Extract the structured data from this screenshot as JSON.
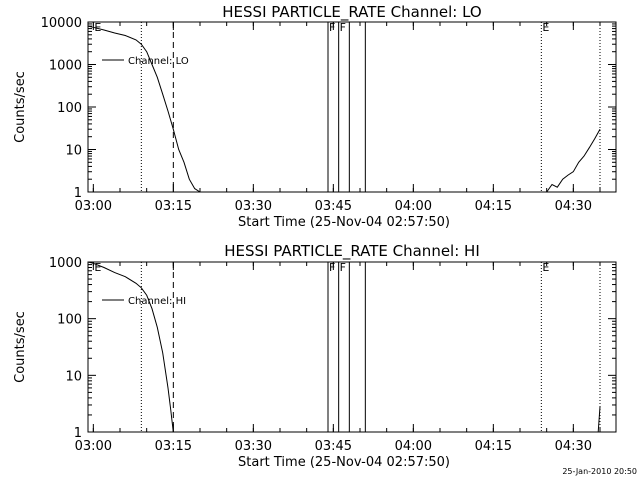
{
  "chart_data": [
    {
      "type": "line",
      "title": "HESSI PARTICLE_RATE Channel: LO",
      "xlabel": "Start Time (25-Nov-04 02:57:50)",
      "ylabel": "Counts/sec",
      "yscale": "log",
      "ylim": [
        1,
        10000
      ],
      "xlim": [
        "02:59:00",
        "04:38:00"
      ],
      "grid": false,
      "legend_placement": "top-left",
      "xticks": [
        "03:00",
        "03:15",
        "03:30",
        "03:45",
        "04:00",
        "04:15",
        "04:30"
      ],
      "yticks": [
        "1",
        "10",
        "100",
        "1000",
        "10000"
      ],
      "markers": [
        {
          "label": "E",
          "time": "03:00"
        },
        {
          "label": "F",
          "time": "03:44"
        },
        {
          "label": "F",
          "time": "03:46"
        }
      ],
      "end_marker": {
        "label": "E",
        "time": "04:24"
      },
      "dotted_lines": [
        "03:09",
        "04:24",
        "04:35"
      ],
      "dashed_lines": [
        "03:15"
      ],
      "solid_lines": [
        "03:44",
        "03:46",
        "03:48",
        "03:51"
      ],
      "series": [
        {
          "name": "Channel: LO",
          "x": [
            "02:59:00",
            "03:00:00",
            "03:02:00",
            "03:04:00",
            "03:06:00",
            "03:08:00",
            "03:09:00",
            "03:10:00",
            "03:11:00",
            "03:12:00",
            "03:13:00",
            "03:14:00",
            "03:15:00",
            "03:16:00",
            "03:17:00",
            "03:18:00",
            "03:19:00",
            "03:20:00"
          ],
          "y": [
            8000,
            7500,
            6500,
            5500,
            4800,
            3800,
            3000,
            2000,
            1000,
            500,
            200,
            80,
            30,
            10,
            5,
            2,
            1.2,
            1
          ]
        },
        {
          "name": "",
          "x": [
            "04:25:00",
            "04:26:00",
            "04:27:00",
            "04:28:00",
            "04:29:00",
            "04:30:00",
            "04:31:00",
            "04:32:00",
            "04:33:00",
            "04:34:00",
            "04:35:00"
          ],
          "y": [
            1,
            1.5,
            1.3,
            2,
            2.5,
            3,
            5,
            7,
            11,
            18,
            30
          ]
        }
      ]
    },
    {
      "type": "line",
      "title": "HESSI PARTICLE_RATE Channel: HI",
      "xlabel": "Start Time (25-Nov-04 02:57:50)",
      "ylabel": "Counts/sec",
      "yscale": "log",
      "ylim": [
        1,
        1000
      ],
      "xlim": [
        "02:59:00",
        "04:38:00"
      ],
      "grid": false,
      "legend_placement": "top-left",
      "xticks": [
        "03:00",
        "03:15",
        "03:30",
        "03:45",
        "04:00",
        "04:15",
        "04:30"
      ],
      "yticks": [
        "1",
        "10",
        "100",
        "1000"
      ],
      "markers": [
        {
          "label": "E",
          "time": "03:00"
        },
        {
          "label": "F",
          "time": "03:44"
        },
        {
          "label": "F",
          "time": "03:46"
        }
      ],
      "end_marker": {
        "label": "E",
        "time": "04:24"
      },
      "dotted_lines": [
        "03:09",
        "04:24",
        "04:35"
      ],
      "dashed_lines": [
        "03:15"
      ],
      "solid_lines": [
        "03:44",
        "03:46",
        "03:48",
        "03:51"
      ],
      "series": [
        {
          "name": "Channel: HI",
          "x": [
            "02:59:00",
            "03:00:00",
            "03:02:00",
            "03:04:00",
            "03:06:00",
            "03:08:00",
            "03:09:00",
            "03:10:00",
            "03:11:00",
            "03:12:00",
            "03:13:00",
            "03:14:00",
            "03:14:30",
            "03:15:00"
          ],
          "y": [
            1000,
            950,
            800,
            650,
            550,
            420,
            350,
            260,
            150,
            70,
            25,
            6,
            2.5,
            1
          ]
        },
        {
          "name": "",
          "x": [
            "04:34:40",
            "04:35:00"
          ],
          "y": [
            1,
            2.8
          ]
        }
      ]
    }
  ],
  "footer": {
    "timestamp": "25-Jan-2010 20:50"
  }
}
